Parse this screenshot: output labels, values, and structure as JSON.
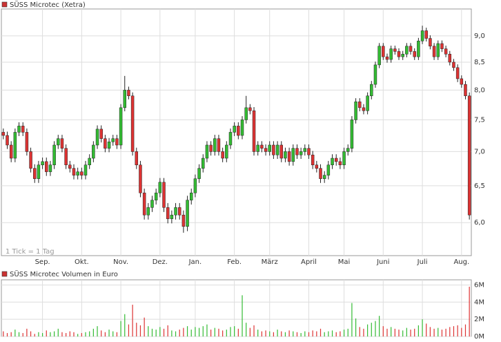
{
  "chart_data": [
    {
      "type": "candlestick",
      "title": "SÜSS Microtec (Xetra)",
      "note": "1 Tick = 1 Tag",
      "legend_color": "#cc3333",
      "up_color": "#33bb33",
      "down_color": "#dd3333",
      "grid": true,
      "log_scale": true,
      "xlim": [
        -0.5,
        119.5
      ],
      "ylim": [
        5.585,
        9.54
      ],
      "yticks": [
        {
          "value": 6,
          "label": "6,0"
        },
        {
          "value": 6.5,
          "label": "6,5"
        },
        {
          "value": 7,
          "label": "7,0"
        },
        {
          "value": 7.5,
          "label": "7,5"
        },
        {
          "value": 8,
          "label": "8,0"
        },
        {
          "value": 8.5,
          "label": "8,5"
        },
        {
          "value": 9,
          "label": "9,0"
        }
      ],
      "xticks": [
        {
          "value": 10,
          "label": "Sep."
        },
        {
          "value": 20,
          "label": "Okt."
        },
        {
          "value": 30,
          "label": "Nov."
        },
        {
          "value": 40,
          "label": "Dez."
        },
        {
          "value": 49,
          "label": "Jan."
        },
        {
          "value": 59,
          "label": "Feb."
        },
        {
          "value": 68,
          "label": "März"
        },
        {
          "value": 78,
          "label": "April"
        },
        {
          "value": 87,
          "label": "Mai"
        },
        {
          "value": 97,
          "label": "Juni"
        },
        {
          "value": 107,
          "label": "Juli"
        },
        {
          "value": 117,
          "label": "Aug."
        }
      ],
      "open": [
        7.3,
        7.25,
        7.1,
        6.9,
        7.3,
        7.4,
        7.3,
        7.0,
        6.75,
        6.6,
        6.8,
        6.85,
        6.7,
        6.8,
        7.1,
        7.2,
        7.05,
        6.8,
        6.75,
        6.65,
        6.7,
        6.65,
        6.8,
        6.9,
        7.1,
        7.35,
        7.2,
        7.05,
        7.15,
        7.2,
        7.1,
        7.7,
        8.0,
        7.9,
        7.0,
        6.8,
        6.4,
        6.1,
        6.2,
        6.3,
        6.4,
        6.55,
        6.2,
        6.05,
        6.1,
        6.2,
        6.1,
        5.95,
        6.3,
        6.4,
        6.6,
        6.75,
        6.9,
        7.1,
        7.0,
        7.2,
        7.0,
        6.9,
        7.1,
        7.3,
        7.4,
        7.25,
        7.5,
        7.7,
        7.65,
        7.0,
        7.1,
        7.05,
        7.0,
        7.1,
        6.95,
        7.1,
        6.9,
        7.0,
        6.85,
        7.05,
        6.95,
        7.0,
        7.05,
        6.95,
        6.8,
        6.75,
        6.6,
        6.65,
        6.8,
        6.9,
        6.85,
        6.8,
        7.0,
        7.05,
        7.5,
        7.8,
        7.7,
        7.65,
        7.9,
        8.1,
        8.45,
        8.8,
        8.6,
        8.55,
        8.75,
        8.7,
        8.6,
        8.65,
        8.8,
        8.7,
        8.6,
        8.9,
        9.1,
        8.95,
        8.8,
        8.6,
        8.85,
        8.75,
        8.65,
        8.5,
        8.4,
        8.2,
        8.1,
        7.9
      ],
      "high": [
        7.36,
        7.31,
        7.16,
        7.36,
        7.46,
        7.46,
        7.36,
        7.06,
        6.81,
        6.86,
        6.91,
        6.91,
        6.86,
        7.16,
        7.26,
        7.26,
        7.11,
        6.86,
        6.81,
        6.76,
        6.76,
        6.86,
        6.96,
        7.16,
        7.41,
        7.41,
        7.26,
        7.21,
        7.26,
        7.26,
        7.76,
        8.25,
        8.06,
        7.96,
        7.06,
        6.86,
        6.46,
        6.26,
        6.36,
        6.46,
        6.61,
        6.61,
        6.26,
        6.16,
        6.26,
        6.26,
        6.16,
        6.36,
        6.46,
        6.66,
        6.81,
        6.96,
        7.16,
        7.16,
        7.26,
        7.26,
        7.06,
        7.16,
        7.36,
        7.46,
        7.46,
        7.56,
        7.9,
        7.76,
        7.71,
        7.16,
        7.16,
        7.11,
        7.16,
        7.16,
        7.16,
        7.16,
        7.06,
        7.06,
        7.11,
        7.11,
        7.06,
        7.11,
        7.11,
        7.01,
        6.86,
        6.81,
        6.71,
        6.86,
        6.96,
        6.96,
        6.91,
        7.06,
        7.11,
        7.56,
        7.86,
        7.86,
        7.76,
        7.96,
        8.16,
        8.51,
        8.86,
        8.86,
        8.66,
        8.81,
        8.81,
        8.76,
        8.71,
        8.86,
        8.86,
        8.76,
        8.96,
        9.2,
        9.16,
        9.01,
        8.86,
        8.91,
        8.91,
        8.81,
        8.71,
        8.56,
        8.46,
        8.26,
        8.16,
        7.96
      ],
      "low": [
        7.19,
        7.04,
        6.84,
        6.84,
        7.24,
        7.24,
        6.94,
        6.69,
        6.54,
        6.54,
        6.74,
        6.64,
        6.64,
        6.74,
        7.04,
        6.99,
        6.74,
        6.69,
        6.59,
        6.59,
        6.59,
        6.59,
        6.74,
        6.84,
        7.04,
        7.14,
        6.99,
        6.99,
        7.09,
        7.04,
        7.04,
        7.64,
        7.84,
        6.94,
        6.74,
        6.34,
        6.04,
        6.04,
        6.14,
        6.24,
        6.34,
        6.14,
        5.99,
        5.99,
        6.04,
        6.04,
        5.87,
        5.89,
        6.24,
        6.34,
        6.54,
        6.69,
        6.84,
        6.94,
        6.94,
        6.94,
        6.84,
        6.84,
        7.04,
        7.24,
        7.19,
        7.19,
        7.44,
        7.59,
        6.94,
        6.94,
        6.99,
        6.94,
        6.94,
        6.89,
        6.89,
        6.84,
        6.84,
        6.79,
        6.79,
        6.89,
        6.89,
        6.94,
        6.89,
        6.74,
        6.69,
        6.54,
        6.54,
        6.59,
        6.74,
        6.79,
        6.74,
        6.74,
        6.94,
        6.99,
        7.44,
        7.64,
        7.59,
        7.59,
        7.84,
        8.04,
        8.39,
        8.54,
        8.49,
        8.49,
        8.64,
        8.54,
        8.54,
        8.59,
        8.64,
        8.54,
        8.54,
        8.84,
        8.89,
        8.74,
        8.54,
        8.54,
        8.69,
        8.59,
        8.44,
        8.34,
        8.14,
        8.04,
        7.84,
        6.04
      ],
      "close": [
        7.25,
        7.1,
        6.9,
        7.3,
        7.4,
        7.3,
        7.0,
        6.75,
        6.6,
        6.8,
        6.85,
        6.7,
        6.8,
        7.1,
        7.2,
        7.05,
        6.8,
        6.75,
        6.65,
        6.7,
        6.65,
        6.8,
        6.9,
        7.1,
        7.35,
        7.2,
        7.05,
        7.15,
        7.2,
        7.1,
        7.7,
        8.0,
        7.9,
        7.0,
        6.8,
        6.4,
        6.1,
        6.2,
        6.3,
        6.4,
        6.55,
        6.2,
        6.05,
        6.1,
        6.2,
        6.1,
        5.95,
        6.3,
        6.4,
        6.6,
        6.75,
        6.9,
        7.1,
        7.0,
        7.2,
        7.0,
        6.9,
        7.1,
        7.3,
        7.4,
        7.25,
        7.5,
        7.7,
        7.65,
        7.0,
        7.1,
        7.05,
        7.0,
        7.1,
        6.95,
        7.1,
        6.9,
        7.0,
        6.85,
        7.05,
        6.95,
        7.0,
        7.05,
        6.95,
        6.8,
        6.75,
        6.6,
        6.65,
        6.8,
        6.9,
        6.85,
        6.8,
        7.0,
        7.05,
        7.5,
        7.8,
        7.7,
        7.65,
        7.9,
        8.1,
        8.45,
        8.8,
        8.6,
        8.55,
        8.75,
        8.7,
        8.6,
        8.65,
        8.8,
        8.7,
        8.6,
        8.9,
        9.1,
        8.95,
        8.8,
        8.6,
        8.85,
        8.75,
        8.65,
        8.5,
        8.4,
        8.2,
        8.1,
        7.9,
        6.1
      ]
    },
    {
      "type": "bar",
      "title": "SÜSS Microtec Volumen in Euro",
      "legend_color": "#cc3333",
      "grid": true,
      "ylim": [
        0,
        6.6
      ],
      "yticks": [
        {
          "value": 0,
          "label": "0M"
        },
        {
          "value": 2,
          "label": "2M"
        },
        {
          "value": 4,
          "label": "4M"
        },
        {
          "value": 6,
          "label": "6M"
        }
      ],
      "values": [
        0.6,
        0.4,
        0.5,
        0.8,
        0.5,
        0.4,
        0.9,
        0.6,
        0.3,
        0.5,
        0.4,
        0.7,
        0.5,
        0.6,
        0.9,
        0.5,
        0.4,
        0.6,
        0.5,
        0.3,
        0.4,
        0.5,
        0.6,
        0.9,
        1.2,
        0.7,
        0.5,
        0.8,
        0.6,
        0.5,
        1.8,
        2.6,
        1.4,
        3.7,
        1.6,
        1.3,
        2.2,
        1.2,
        0.9,
        0.8,
        1.1,
        0.9,
        1.3,
        0.7,
        0.6,
        0.8,
        1.0,
        1.2,
        0.8,
        1.1,
        1.0,
        1.2,
        1.4,
        0.8,
        1.0,
        0.9,
        0.7,
        0.8,
        1.1,
        1.2,
        0.9,
        4.8,
        1.6,
        1.0,
        1.3,
        0.8,
        0.6,
        0.7,
        0.6,
        0.5,
        0.8,
        0.6,
        0.5,
        0.7,
        0.6,
        0.5,
        0.4,
        0.6,
        0.5,
        0.7,
        0.6,
        0.9,
        0.5,
        0.6,
        0.7,
        0.5,
        0.6,
        0.8,
        0.9,
        3.9,
        2.1,
        1.1,
        0.9,
        1.4,
        1.6,
        1.8,
        2.4,
        1.2,
        0.9,
        1.1,
        0.9,
        0.8,
        0.7,
        1.0,
        0.8,
        0.9,
        1.3,
        2.0,
        1.5,
        1.1,
        0.9,
        1.0,
        0.8,
        0.9,
        1.1,
        1.2,
        1.3,
        1.0,
        1.4,
        5.8
      ]
    }
  ]
}
